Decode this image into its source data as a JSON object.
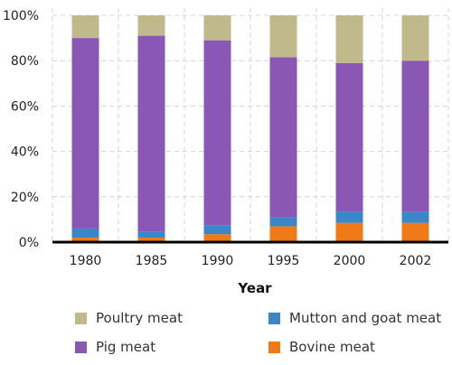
{
  "chart_data": {
    "type": "bar",
    "stacked": true,
    "percent": true,
    "categories": [
      "1980",
      "1985",
      "1990",
      "1995",
      "2000",
      "2002"
    ],
    "series": [
      {
        "name": "Bovine meat",
        "color": "#f07a18",
        "values": [
          2,
          2,
          3.5,
          7,
          8.5,
          8.5
        ]
      },
      {
        "name": "Mutton and goat meat",
        "color": "#3a86c8",
        "values": [
          4,
          2.5,
          4,
          4,
          5,
          5
        ]
      },
      {
        "name": "Pig meat",
        "color": "#8a58b4",
        "values": [
          84,
          86.5,
          81.5,
          70.5,
          65.5,
          66.5
        ]
      },
      {
        "name": "Poultry meat",
        "color": "#bfb98b",
        "values": [
          10,
          9,
          11,
          18.5,
          21,
          20
        ]
      }
    ],
    "yticks": [
      "0%",
      "20%",
      "40%",
      "60%",
      "80%",
      "100%"
    ],
    "xlabel": "Year",
    "ylabel": "",
    "ylim": [
      0,
      100
    ],
    "grid": true,
    "legend_position": "bottom",
    "legend_order": [
      "Poultry meat",
      "Mutton and goat meat",
      "Pig meat",
      "Bovine meat"
    ]
  }
}
